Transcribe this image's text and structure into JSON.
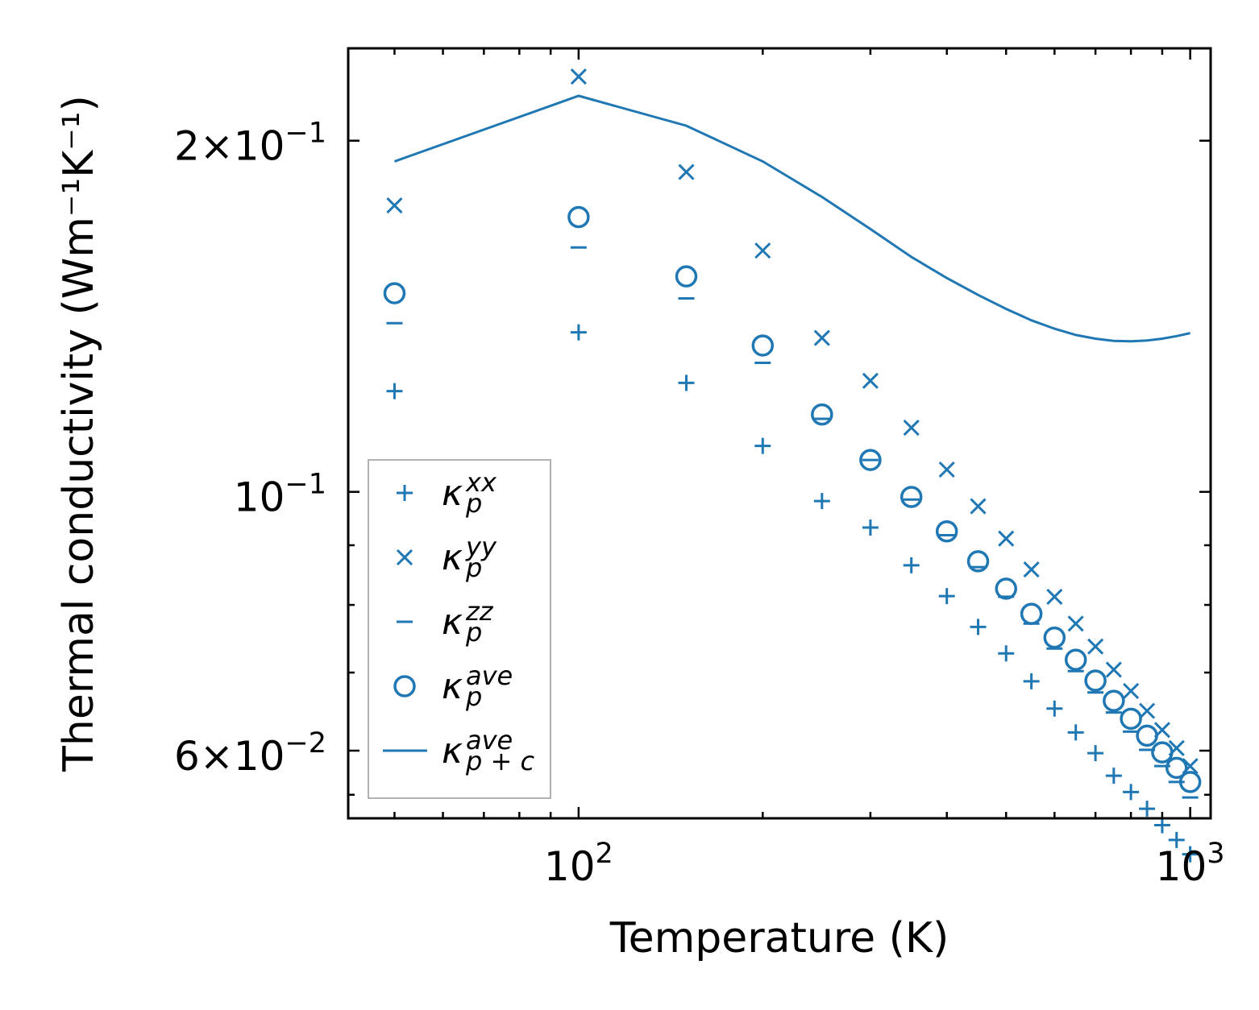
{
  "chart_data": {
    "type": "scatter",
    "title": "",
    "xlabel": "Temperature (K)",
    "ylabel": "Thermal conductivity (Wm⁻¹K⁻¹)",
    "xscale": "log",
    "yscale": "log",
    "xlim": [
      42,
      1080
    ],
    "ylim": [
      0.0525,
      0.24
    ],
    "x_major_ticks": [
      {
        "value": 100,
        "base": "10",
        "exp": "2"
      },
      {
        "value": 1000,
        "base": "10",
        "exp": "3"
      }
    ],
    "y_major_ticks": [
      {
        "value": 0.2,
        "base": "2×10",
        "exp": "−1"
      },
      {
        "value": 0.1,
        "base": "10",
        "exp": "−1"
      },
      {
        "value": 0.06,
        "base": "6×10",
        "exp": "−2"
      }
    ],
    "x_minor_ticks": [
      50,
      60,
      70,
      80,
      90,
      200,
      300,
      400,
      500,
      600,
      700,
      800,
      900
    ],
    "y_minor_ticks": [
      0.055,
      0.07,
      0.08,
      0.09
    ],
    "grid": false,
    "legend_position": "lower-left",
    "color": "#1f77b4",
    "x": [
      50,
      100,
      150,
      200,
      250,
      300,
      350,
      400,
      450,
      500,
      550,
      600,
      650,
      700,
      750,
      800,
      850,
      900,
      950,
      1000
    ],
    "series": [
      {
        "name": "kappa_p_xx",
        "kind": "marker",
        "marker": "plus",
        "legend_base": "κ",
        "legend_sub": "p",
        "legend_sup": "xx",
        "values": [
          0.122,
          0.137,
          0.124,
          0.1095,
          0.0982,
          0.0932,
          0.0865,
          0.0814,
          0.0766,
          0.0727,
          0.0688,
          0.0652,
          0.0622,
          0.0597,
          0.0571,
          0.0553,
          0.0535,
          0.0518,
          0.0503,
          0.0489
        ]
      },
      {
        "name": "kappa_p_yy",
        "kind": "marker",
        "marker": "x",
        "legend_base": "κ",
        "legend_sub": "p",
        "legend_sup": "yy",
        "values": [
          0.176,
          0.227,
          0.188,
          0.161,
          0.1355,
          0.1245,
          0.1135,
          0.1045,
          0.0972,
          0.0912,
          0.0858,
          0.0813,
          0.0771,
          0.0737,
          0.0704,
          0.0675,
          0.0649,
          0.0625,
          0.0603,
          0.0582
        ]
      },
      {
        "name": "kappa_p_zz",
        "kind": "marker",
        "marker": "dash",
        "legend_base": "κ",
        "legend_sub": "p",
        "legend_sup": "zz",
        "values": [
          0.1395,
          0.162,
          0.1465,
          0.129,
          0.1155,
          0.1065,
          0.0985,
          0.0918,
          0.0862,
          0.0813,
          0.0771,
          0.0734,
          0.0702,
          0.0673,
          0.0647,
          0.0623,
          0.0601,
          0.0582,
          0.0564,
          0.0547
        ]
      },
      {
        "name": "kappa_p_ave",
        "kind": "marker",
        "marker": "circle",
        "legend_base": "κ",
        "legend_sub": "p",
        "legend_sup": "ave",
        "values": [
          0.148,
          0.172,
          0.153,
          0.1335,
          0.1165,
          0.1065,
          0.099,
          0.0925,
          0.0872,
          0.0826,
          0.0786,
          0.075,
          0.0718,
          0.0689,
          0.0662,
          0.0639,
          0.0618,
          0.0598,
          0.058,
          0.0564
        ]
      },
      {
        "name": "kappa_pc_ave",
        "kind": "line",
        "legend_base": "κ",
        "legend_sub": "p + c",
        "legend_sup": "ave",
        "values": [
          0.192,
          0.2185,
          0.206,
          0.192,
          0.179,
          0.168,
          0.159,
          0.1525,
          0.1475,
          0.1435,
          0.1403,
          0.138,
          0.1363,
          0.1353,
          0.1347,
          0.1346,
          0.1348,
          0.1353,
          0.136,
          0.1368
        ]
      }
    ]
  }
}
